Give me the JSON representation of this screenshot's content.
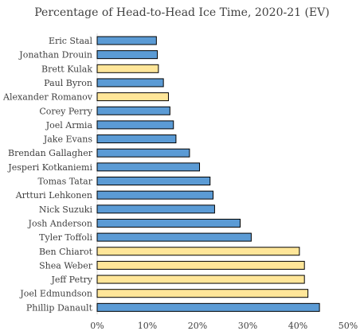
{
  "chart_data": {
    "type": "bar",
    "orientation": "horizontal",
    "title": "Percentage of Head-to-Head Ice Time, 2020-21 (EV)",
    "xlabel": "",
    "ylabel": "",
    "xlim": [
      0,
      0.5
    ],
    "xticks": [
      "0%",
      "10%",
      "20%",
      "30%",
      "40%",
      "50%"
    ],
    "grid": false,
    "legend": "none",
    "colors": {
      "forward": "#5b9bd5",
      "defense": "#ffe699",
      "edge": "#000000"
    },
    "categories": [
      "Eric Staal",
      "Jonathan Drouin",
      "Brett Kulak",
      "Paul Byron",
      "Alexander Romanov",
      "Corey Perry",
      "Joel Armia",
      "Jake Evans",
      "Brendan Gallagher",
      "Jesperi Kotkaniemi",
      "Tomas Tatar",
      "Artturi Lehkonen",
      "Nick Suzuki",
      "Josh Anderson",
      "Tyler Toffoli",
      "Ben Chiarot",
      "Shea Weber",
      "Jeff Petry",
      "Joel Edmundson",
      "Phillip Danault"
    ],
    "values": [
      0.118,
      0.12,
      0.122,
      0.132,
      0.142,
      0.145,
      0.152,
      0.157,
      0.184,
      0.204,
      0.225,
      0.231,
      0.234,
      0.285,
      0.307,
      0.403,
      0.413,
      0.413,
      0.42,
      0.443
    ],
    "groups": [
      "forward",
      "forward",
      "defense",
      "forward",
      "defense",
      "forward",
      "forward",
      "forward",
      "forward",
      "forward",
      "forward",
      "forward",
      "forward",
      "forward",
      "forward",
      "defense",
      "defense",
      "defense",
      "defense",
      "forward"
    ]
  }
}
